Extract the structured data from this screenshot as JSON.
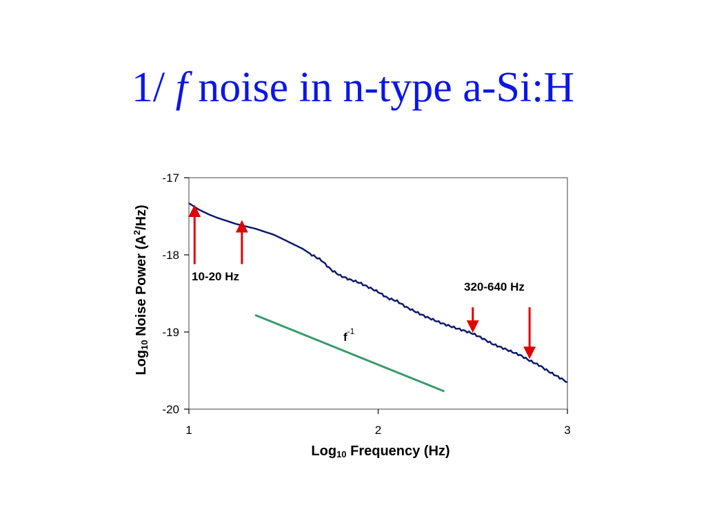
{
  "slide": {
    "title_prefix": "1/ ",
    "title_italic": "f",
    "title_suffix": " noise in n-type a-Si:H"
  },
  "chart_data": {
    "type": "line",
    "title": "",
    "xlabel": {
      "pre": "Log",
      "sub": "10",
      "post": " Frequency (Hz)"
    },
    "ylabel": {
      "pre": "Log",
      "sub": "10",
      "mid": " Noise Power (A",
      "sup": "2",
      "post": "/Hz)"
    },
    "xlim": [
      1,
      3
    ],
    "ylim": [
      -20,
      -17
    ],
    "xticks": [
      1,
      2,
      3
    ],
    "yticks": [
      -17,
      -18,
      -19,
      -20
    ],
    "grid": false,
    "colors": {
      "series": "#0d1a6b",
      "reference": "#3a9a6a",
      "arrow": "#e00000",
      "frame": "#808080"
    },
    "series": [
      {
        "values": [
          [
            1.0,
            -17.33
          ],
          [
            1.05,
            -17.41
          ],
          [
            1.1,
            -17.47
          ],
          [
            1.15,
            -17.52
          ],
          [
            1.2,
            -17.56
          ],
          [
            1.25,
            -17.6
          ],
          [
            1.3,
            -17.63
          ],
          [
            1.35,
            -17.66
          ],
          [
            1.4,
            -17.7
          ],
          [
            1.45,
            -17.74
          ],
          [
            1.5,
            -17.8
          ],
          [
            1.55,
            -17.86
          ],
          [
            1.6,
            -17.92
          ],
          [
            1.65,
            -18.0
          ],
          [
            1.7,
            -18.07
          ],
          [
            1.75,
            -18.19
          ],
          [
            1.8,
            -18.27
          ],
          [
            1.85,
            -18.32
          ],
          [
            1.9,
            -18.36
          ],
          [
            1.95,
            -18.42
          ],
          [
            2.0,
            -18.48
          ],
          [
            2.05,
            -18.56
          ],
          [
            2.1,
            -18.6
          ],
          [
            2.15,
            -18.68
          ],
          [
            2.2,
            -18.74
          ],
          [
            2.25,
            -18.8
          ],
          [
            2.3,
            -18.85
          ],
          [
            2.35,
            -18.9
          ],
          [
            2.4,
            -18.94
          ],
          [
            2.45,
            -18.98
          ],
          [
            2.5,
            -19.02
          ],
          [
            2.55,
            -19.08
          ],
          [
            2.6,
            -19.15
          ],
          [
            2.65,
            -19.2
          ],
          [
            2.7,
            -19.25
          ],
          [
            2.75,
            -19.3
          ],
          [
            2.8,
            -19.37
          ],
          [
            2.85,
            -19.43
          ],
          [
            2.9,
            -19.51
          ],
          [
            2.95,
            -19.58
          ],
          [
            3.0,
            -19.65
          ]
        ]
      }
    ],
    "reference_line": {
      "label": "f",
      "exponent": "-1",
      "x": [
        1.35,
        2.35
      ],
      "y": [
        -18.78,
        -19.77
      ]
    },
    "annotations": [
      {
        "label": "10-20 Hz",
        "arrows": [
          {
            "x": 1.03,
            "y_tail": -18.12,
            "y_head": -17.43
          },
          {
            "x": 1.28,
            "y_tail": -18.12,
            "y_head": -17.63
          }
        ]
      },
      {
        "label": "320-640 Hz",
        "arrows": [
          {
            "x": 2.5,
            "y_tail": -18.68,
            "y_head": -18.93
          },
          {
            "x": 2.8,
            "y_tail": -18.68,
            "y_head": -19.27
          }
        ]
      }
    ]
  }
}
